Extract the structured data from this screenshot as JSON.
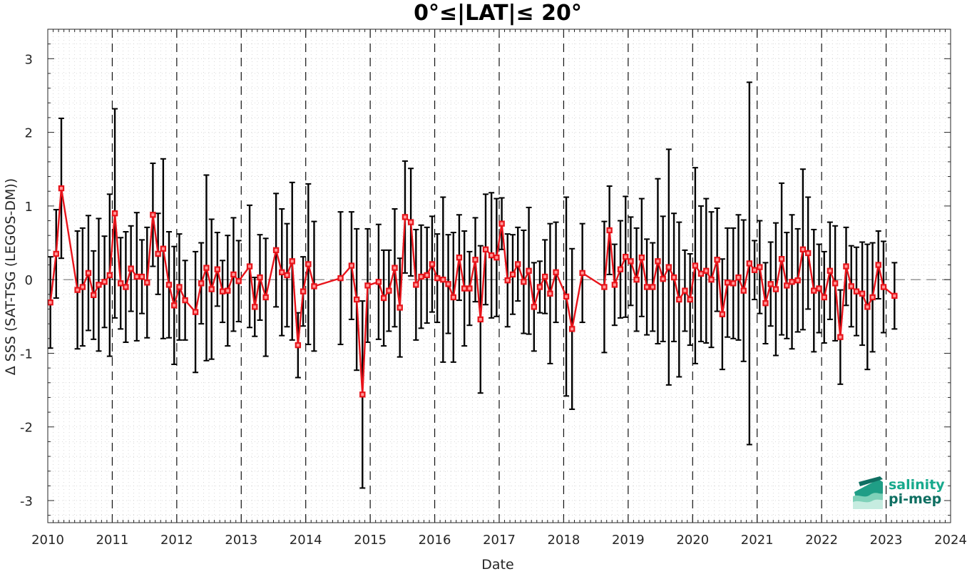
{
  "chart_data": {
    "type": "line",
    "title": "0°≤|LAT|≤ 20°",
    "xlabel": "Date",
    "ylabel": "Δ SSS (SAT-TSG (LEGOS-DM))",
    "xlim": [
      2010,
      2024
    ],
    "ylim": [
      -3.3,
      3.4
    ],
    "xticks": [
      2010,
      2011,
      2012,
      2013,
      2014,
      2015,
      2016,
      2017,
      2018,
      2019,
      2020,
      2021,
      2022,
      2023,
      2024
    ],
    "xtick_labels": [
      "2010",
      "2011",
      "2012",
      "2013",
      "2014",
      "2015",
      "2016",
      "2017",
      "2018",
      "2019",
      "2020",
      "2021",
      "2022",
      "2023",
      "2024"
    ],
    "yticks": [
      -3,
      -2,
      -1,
      0,
      1,
      2,
      3
    ],
    "ytick_labels": [
      "-3",
      "-2",
      "-1",
      "0",
      "1",
      "2",
      "3"
    ],
    "grid": true,
    "year_markers": "dashed vertical lines at each year",
    "zero_line": "dashed horizontal line at y=0",
    "series": [
      {
        "color": "#e8141b",
        "marker": "square",
        "errorbar_color": "#000000",
        "points": [
          {
            "x": 2010.04,
            "y": -0.31,
            "err": 0.62
          },
          {
            "x": 2010.13,
            "y": 0.35,
            "err": 0.6
          },
          {
            "x": 2010.21,
            "y": 1.24,
            "err": 0.95
          },
          {
            "x": 2010.46,
            "y": -0.14,
            "err": 0.8
          },
          {
            "x": 2010.54,
            "y": -0.1,
            "err": 0.8
          },
          {
            "x": 2010.63,
            "y": 0.09,
            "err": 0.78
          },
          {
            "x": 2010.71,
            "y": -0.21,
            "err": 0.6
          },
          {
            "x": 2010.79,
            "y": -0.07,
            "err": 0.9
          },
          {
            "x": 2010.88,
            "y": -0.03,
            "err": 0.62
          },
          {
            "x": 2010.96,
            "y": 0.06,
            "err": 1.1
          },
          {
            "x": 2011.04,
            "y": 0.9,
            "err": 1.42
          },
          {
            "x": 2011.13,
            "y": -0.05,
            "err": 0.62
          },
          {
            "x": 2011.21,
            "y": -0.1,
            "err": 0.75
          },
          {
            "x": 2011.29,
            "y": 0.15,
            "err": 0.58
          },
          {
            "x": 2011.38,
            "y": 0.04,
            "err": 0.87
          },
          {
            "x": 2011.46,
            "y": 0.04,
            "err": 0.5
          },
          {
            "x": 2011.54,
            "y": -0.04,
            "err": 0.75
          },
          {
            "x": 2011.63,
            "y": 0.88,
            "err": 0.7
          },
          {
            "x": 2011.71,
            "y": 0.35,
            "err": 0.55
          },
          {
            "x": 2011.79,
            "y": 0.42,
            "err": 1.22
          },
          {
            "x": 2011.88,
            "y": -0.07,
            "err": 0.72
          },
          {
            "x": 2011.96,
            "y": -0.35,
            "err": 0.8
          },
          {
            "x": 2012.04,
            "y": -0.1,
            "err": 0.72
          },
          {
            "x": 2012.13,
            "y": -0.28,
            "err": 0.54
          },
          {
            "x": 2012.29,
            "y": -0.44,
            "err": 0.82
          },
          {
            "x": 2012.38,
            "y": -0.05,
            "err": 0.55
          },
          {
            "x": 2012.46,
            "y": 0.16,
            "err": 1.26
          },
          {
            "x": 2012.54,
            "y": -0.13,
            "err": 0.95
          },
          {
            "x": 2012.63,
            "y": 0.14,
            "err": 0.5
          },
          {
            "x": 2012.71,
            "y": -0.16,
            "err": 0.42
          },
          {
            "x": 2012.79,
            "y": -0.15,
            "err": 0.75
          },
          {
            "x": 2012.88,
            "y": 0.07,
            "err": 0.77
          },
          {
            "x": 2012.96,
            "y": -0.02,
            "err": 0.55
          },
          {
            "x": 2013.13,
            "y": 0.18,
            "err": 0.83
          },
          {
            "x": 2013.21,
            "y": -0.37,
            "err": 0.4
          },
          {
            "x": 2013.29,
            "y": 0.03,
            "err": 0.58
          },
          {
            "x": 2013.38,
            "y": -0.24,
            "err": 0.8
          },
          {
            "x": 2013.54,
            "y": 0.4,
            "err": 0.77
          },
          {
            "x": 2013.63,
            "y": 0.1,
            "err": 0.86
          },
          {
            "x": 2013.71,
            "y": 0.06,
            "err": 0.7
          },
          {
            "x": 2013.79,
            "y": 0.25,
            "err": 1.07
          },
          {
            "x": 2013.88,
            "y": -0.89,
            "err": 0.44
          },
          {
            "x": 2013.96,
            "y": -0.16,
            "err": 0.47
          },
          {
            "x": 2014.04,
            "y": 0.21,
            "err": 1.09
          },
          {
            "x": 2014.13,
            "y": -0.09,
            "err": 0.88
          },
          {
            "x": 2014.54,
            "y": 0.02,
            "err": 0.9
          },
          {
            "x": 2014.71,
            "y": 0.19,
            "err": 0.73
          },
          {
            "x": 2014.79,
            "y": -0.27,
            "err": 0.96
          },
          {
            "x": 2014.88,
            "y": -1.56,
            "err": 1.27
          },
          {
            "x": 2014.96,
            "y": -0.08,
            "err": 0.77
          },
          {
            "x": 2015.13,
            "y": -0.03,
            "err": 0.78
          },
          {
            "x": 2015.21,
            "y": -0.25,
            "err": 0.65
          },
          {
            "x": 2015.29,
            "y": -0.15,
            "err": 0.55
          },
          {
            "x": 2015.38,
            "y": 0.16,
            "err": 0.8
          },
          {
            "x": 2015.46,
            "y": -0.38,
            "err": 0.67
          },
          {
            "x": 2015.54,
            "y": 0.85,
            "err": 0.76
          },
          {
            "x": 2015.63,
            "y": 0.78,
            "err": 0.73
          },
          {
            "x": 2015.71,
            "y": -0.07,
            "err": 0.75
          },
          {
            "x": 2015.79,
            "y": 0.04,
            "err": 0.7
          },
          {
            "x": 2015.88,
            "y": 0.06,
            "err": 0.65
          },
          {
            "x": 2015.96,
            "y": 0.21,
            "err": 0.65
          },
          {
            "x": 2016.04,
            "y": 0.02,
            "err": 0.6
          },
          {
            "x": 2016.13,
            "y": 0.0,
            "err": 1.12
          },
          {
            "x": 2016.21,
            "y": -0.06,
            "err": 0.67
          },
          {
            "x": 2016.29,
            "y": -0.24,
            "err": 0.88
          },
          {
            "x": 2016.38,
            "y": 0.3,
            "err": 0.58
          },
          {
            "x": 2016.46,
            "y": -0.12,
            "err": 0.78
          },
          {
            "x": 2016.54,
            "y": -0.12,
            "err": 0.5
          },
          {
            "x": 2016.63,
            "y": 0.27,
            "err": 0.57
          },
          {
            "x": 2016.71,
            "y": -0.54,
            "err": 1.0
          },
          {
            "x": 2016.79,
            "y": 0.41,
            "err": 0.75
          },
          {
            "x": 2016.88,
            "y": 0.33,
            "err": 0.85
          },
          {
            "x": 2016.96,
            "y": 0.3,
            "err": 0.8
          },
          {
            "x": 2017.04,
            "y": 0.76,
            "err": 0.35
          },
          {
            "x": 2017.13,
            "y": -0.01,
            "err": 0.63
          },
          {
            "x": 2017.21,
            "y": 0.07,
            "err": 0.54
          },
          {
            "x": 2017.29,
            "y": 0.21,
            "err": 0.5
          },
          {
            "x": 2017.38,
            "y": -0.03,
            "err": 0.7
          },
          {
            "x": 2017.46,
            "y": 0.12,
            "err": 0.86
          },
          {
            "x": 2017.54,
            "y": -0.37,
            "err": 0.6
          },
          {
            "x": 2017.63,
            "y": -0.1,
            "err": 0.35
          },
          {
            "x": 2017.71,
            "y": 0.04,
            "err": 0.5
          },
          {
            "x": 2017.79,
            "y": -0.19,
            "err": 0.95
          },
          {
            "x": 2017.88,
            "y": 0.1,
            "err": 0.68
          },
          {
            "x": 2018.04,
            "y": -0.23,
            "err": 1.35
          },
          {
            "x": 2018.13,
            "y": -0.67,
            "err": 1.09
          },
          {
            "x": 2018.29,
            "y": 0.09,
            "err": 0.67
          },
          {
            "x": 2018.63,
            "y": -0.1,
            "err": 0.89
          },
          {
            "x": 2018.71,
            "y": 0.67,
            "err": 0.6
          },
          {
            "x": 2018.79,
            "y": -0.07,
            "err": 0.55
          },
          {
            "x": 2018.88,
            "y": 0.14,
            "err": 0.66
          },
          {
            "x": 2018.96,
            "y": 0.31,
            "err": 0.82
          },
          {
            "x": 2019.04,
            "y": 0.25,
            "err": 0.6
          },
          {
            "x": 2019.13,
            "y": 0.0,
            "err": 0.7
          },
          {
            "x": 2019.21,
            "y": 0.3,
            "err": 0.8
          },
          {
            "x": 2019.29,
            "y": -0.1,
            "err": 0.65
          },
          {
            "x": 2019.38,
            "y": -0.1,
            "err": 0.6
          },
          {
            "x": 2019.46,
            "y": 0.25,
            "err": 1.12
          },
          {
            "x": 2019.54,
            "y": 0.01,
            "err": 0.85
          },
          {
            "x": 2019.63,
            "y": 0.17,
            "err": 1.6
          },
          {
            "x": 2019.71,
            "y": 0.03,
            "err": 0.87
          },
          {
            "x": 2019.79,
            "y": -0.27,
            "err": 1.05
          },
          {
            "x": 2019.88,
            "y": -0.15,
            "err": 0.55
          },
          {
            "x": 2019.96,
            "y": -0.27,
            "err": 0.62
          },
          {
            "x": 2020.04,
            "y": 0.19,
            "err": 1.33
          },
          {
            "x": 2020.13,
            "y": 0.08,
            "err": 0.92
          },
          {
            "x": 2020.21,
            "y": 0.12,
            "err": 0.98
          },
          {
            "x": 2020.29,
            "y": 0.0,
            "err": 0.92
          },
          {
            "x": 2020.38,
            "y": 0.27,
            "err": 0.7
          },
          {
            "x": 2020.46,
            "y": -0.47,
            "err": 0.75
          },
          {
            "x": 2020.54,
            "y": -0.04,
            "err": 0.74
          },
          {
            "x": 2020.63,
            "y": -0.05,
            "err": 0.75
          },
          {
            "x": 2020.71,
            "y": 0.03,
            "err": 0.85
          },
          {
            "x": 2020.79,
            "y": -0.15,
            "err": 0.96
          },
          {
            "x": 2020.88,
            "y": 0.22,
            "err": 2.46
          },
          {
            "x": 2020.96,
            "y": 0.13,
            "err": 0.4
          },
          {
            "x": 2021.04,
            "y": 0.17,
            "err": 0.63
          },
          {
            "x": 2021.13,
            "y": -0.32,
            "err": 0.55
          },
          {
            "x": 2021.21,
            "y": -0.06,
            "err": 0.57
          },
          {
            "x": 2021.29,
            "y": -0.13,
            "err": 0.9
          },
          {
            "x": 2021.38,
            "y": 0.28,
            "err": 1.03
          },
          {
            "x": 2021.46,
            "y": -0.08,
            "err": 0.72
          },
          {
            "x": 2021.54,
            "y": -0.03,
            "err": 0.91
          },
          {
            "x": 2021.63,
            "y": -0.01,
            "err": 0.7
          },
          {
            "x": 2021.71,
            "y": 0.41,
            "err": 1.09
          },
          {
            "x": 2021.79,
            "y": 0.36,
            "err": 0.76
          },
          {
            "x": 2021.88,
            "y": -0.15,
            "err": 0.83
          },
          {
            "x": 2021.96,
            "y": -0.12,
            "err": 0.6
          },
          {
            "x": 2022.04,
            "y": -0.24,
            "err": 0.62
          },
          {
            "x": 2022.13,
            "y": 0.12,
            "err": 0.66
          },
          {
            "x": 2022.21,
            "y": -0.05,
            "err": 0.78
          },
          {
            "x": 2022.29,
            "y": -0.78,
            "err": 0.64
          },
          {
            "x": 2022.38,
            "y": 0.18,
            "err": 0.53
          },
          {
            "x": 2022.46,
            "y": -0.09,
            "err": 0.55
          },
          {
            "x": 2022.54,
            "y": -0.16,
            "err": 0.6
          },
          {
            "x": 2022.63,
            "y": -0.19,
            "err": 0.7
          },
          {
            "x": 2022.71,
            "y": -0.37,
            "err": 0.85
          },
          {
            "x": 2022.79,
            "y": -0.24,
            "err": 0.74
          },
          {
            "x": 2022.88,
            "y": 0.2,
            "err": 0.46
          },
          {
            "x": 2022.96,
            "y": -0.1,
            "err": 0.62
          },
          {
            "x": 2023.13,
            "y": -0.22,
            "err": 0.45
          }
        ]
      }
    ]
  },
  "logo": {
    "line1": "salinity",
    "line2": "pi-mep",
    "color_primary": "#17a98c",
    "color_secondary": "#0f6f62"
  }
}
